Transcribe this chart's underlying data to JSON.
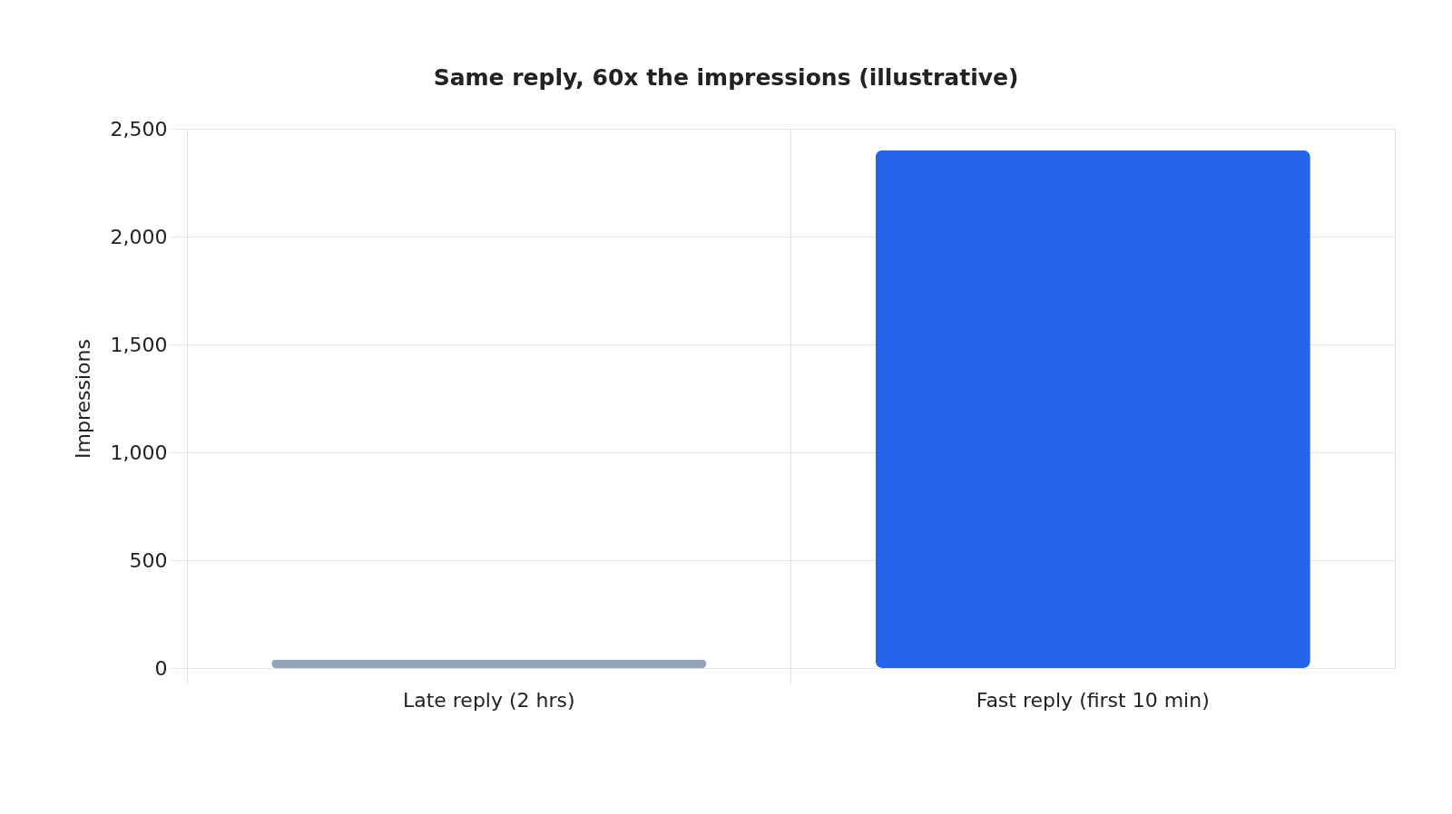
{
  "chart_data": {
    "type": "bar",
    "title": "Same reply, 60x the impressions (illustrative)",
    "ylabel": "Impressions",
    "categories": [
      "Late reply (2 hrs)",
      "Fast reply (first 10 min)"
    ],
    "values": [
      40,
      2400
    ],
    "colors": [
      "#94a3b8",
      "#2563eb"
    ],
    "ylim": [
      0,
      2500
    ],
    "yticks": [
      0,
      500,
      {
        "value": 1000,
        "label": "1,000"
      },
      {
        "value": 1500,
        "label": "1,500"
      },
      {
        "value": 2000,
        "label": "2,000"
      },
      {
        "value": 2500,
        "label": "2,500"
      }
    ],
    "grid": true
  }
}
